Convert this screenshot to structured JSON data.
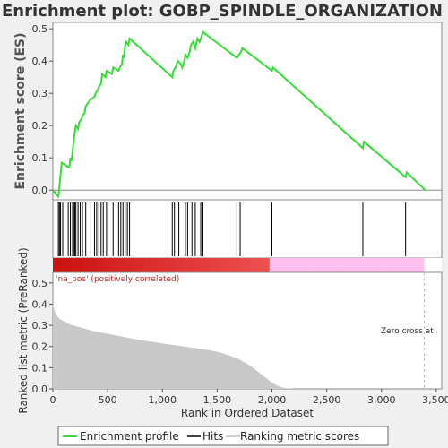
{
  "title": "Enrichment plot: GOBP_SPINDLE_ORGANIZATION",
  "colors": {
    "es_line": "#33dd33",
    "hit_line": "#000000",
    "metric_fill": "#c8c8c8",
    "zero_line": "#bbbbbb",
    "pos_heat": "#ee1111",
    "neg_heat": "#ffc0f0"
  },
  "chart_data": [
    {
      "type": "line",
      "name": "enrichment-score",
      "ylabel": "Enrichment score (ES)",
      "ylim": [
        -0.03,
        0.52
      ],
      "y_ticks": [
        0.0,
        0.1,
        0.2,
        0.3,
        0.4,
        0.5
      ],
      "y_tick_labels": [
        "0.0",
        "0.1",
        "0.2",
        "0.3",
        "0.4",
        "0.5"
      ],
      "series": [
        {
          "name": "Enrichment profile",
          "x": [
            0,
            50,
            60,
            70,
            80,
            150,
            160,
            170,
            180,
            190,
            200,
            210,
            230,
            240,
            260,
            270,
            290,
            300,
            320,
            340,
            380,
            390,
            410,
            420,
            440,
            450,
            480,
            490,
            540,
            550,
            600,
            610,
            630,
            640,
            650,
            660,
            670,
            690,
            700,
            1090,
            1100,
            1120,
            1130,
            1140,
            1170,
            1180,
            1200,
            1210,
            1230,
            1250,
            1260,
            1280,
            1300,
            1320,
            1340,
            1360,
            1370,
            1680,
            1700,
            1720,
            1730,
            2000,
            2010,
            2830,
            2840,
            3220,
            3230,
            3400
          ],
          "y": [
            0.0,
            -0.02,
            0.01,
            0.05,
            0.085,
            0.07,
            0.1,
            0.09,
            0.12,
            0.15,
            0.18,
            0.2,
            0.19,
            0.21,
            0.22,
            0.23,
            0.24,
            0.26,
            0.27,
            0.28,
            0.29,
            0.3,
            0.31,
            0.32,
            0.33,
            0.36,
            0.35,
            0.37,
            0.36,
            0.38,
            0.37,
            0.38,
            0.39,
            0.42,
            0.41,
            0.45,
            0.46,
            0.45,
            0.47,
            0.35,
            0.37,
            0.38,
            0.39,
            0.4,
            0.39,
            0.38,
            0.4,
            0.42,
            0.41,
            0.43,
            0.45,
            0.46,
            0.44,
            0.47,
            0.46,
            0.48,
            0.49,
            0.41,
            0.42,
            0.43,
            0.44,
            0.37,
            0.38,
            0.13,
            0.15,
            0.04,
            0.055,
            0.0
          ]
        }
      ]
    },
    {
      "type": "hits",
      "name": "hits",
      "positions": [
        50,
        60,
        70,
        90,
        140,
        160,
        180,
        190,
        200,
        210,
        230,
        250,
        270,
        300,
        340,
        380,
        400,
        420,
        440,
        460,
        490,
        550,
        600,
        620,
        640,
        660,
        680,
        700,
        1090,
        1110,
        1150,
        1210,
        1230,
        1270,
        1300,
        1350,
        1370,
        1680,
        1710,
        2000,
        2830,
        3220
      ]
    },
    {
      "type": "area",
      "name": "ranked-list-metric",
      "xlabel": "Rank in Ordered Dataset",
      "ylabel": "Ranked list metric (PreRanked)",
      "xlim": [
        0,
        3550
      ],
      "ylim": [
        0,
        0.55
      ],
      "x_ticks": [
        0,
        500,
        1000,
        1500,
        2000,
        2500,
        3000,
        3500
      ],
      "x_tick_labels": [
        "0",
        "500",
        "1,000",
        "1,500",
        "2,000",
        "2,500",
        "3,000",
        "3,500"
      ],
      "y_ticks": [
        0.0,
        0.1,
        0.2,
        0.3,
        0.4,
        0.5
      ],
      "y_tick_labels": [
        "0.0",
        "0.1",
        "0.2",
        "0.3",
        "0.4",
        "0.5"
      ],
      "x": [
        0,
        10,
        30,
        60,
        100,
        150,
        250,
        400,
        600,
        800,
        1000,
        1200,
        1400,
        1500,
        1600,
        1700,
        1800,
        1850,
        1900,
        1950,
        2000,
        2050,
        2100,
        2150,
        2200,
        2300,
        2500,
        3000,
        3400
      ],
      "y": [
        0.41,
        0.38,
        0.35,
        0.33,
        0.32,
        0.305,
        0.29,
        0.27,
        0.25,
        0.23,
        0.215,
        0.2,
        0.185,
        0.175,
        0.16,
        0.14,
        0.11,
        0.09,
        0.07,
        0.05,
        0.03,
        0.015,
        0.005,
        0.002,
        0.0,
        0.0,
        0.0,
        0.0,
        0.0
      ],
      "annotations": {
        "positive_label": "'na_pos' (positively correlated)",
        "zero_cross": "Zero cross at"
      },
      "zero_cross_rank": 3390
    }
  ],
  "legend": {
    "items": [
      "Enrichment profile",
      "Hits",
      "Ranking metric scores"
    ]
  }
}
